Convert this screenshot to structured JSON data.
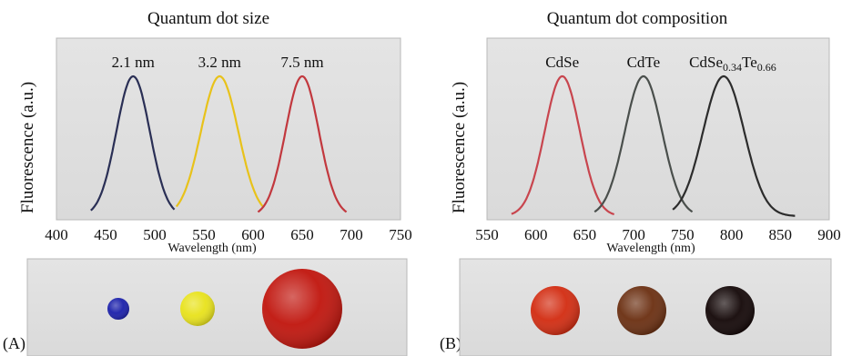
{
  "chart_data": [
    {
      "type": "line",
      "title": "Quantum dot size",
      "xlabel": "Wavelength (nm)",
      "ylabel": "Fluorescence (a.u.)",
      "xlim": [
        400,
        750
      ],
      "xticks": [
        "400",
        "450",
        "500",
        "550",
        "600",
        "650",
        "700",
        "750"
      ],
      "series": [
        {
          "name": "2.1 nm",
          "color": "#2a2f55",
          "peak": 478,
          "sigma": 17,
          "range": [
            435,
            520
          ]
        },
        {
          "name": "3.2 nm",
          "color": "#e8c21a",
          "peak": 566,
          "sigma": 19,
          "range": [
            522,
            610
          ]
        },
        {
          "name": "7.5 nm",
          "color": "#c2383e",
          "peak": 650,
          "sigma": 17,
          "range": [
            605,
            695
          ]
        }
      ],
      "dots": [
        {
          "color": "#1a1faa",
          "size": "small"
        },
        {
          "color": "#e8e21a",
          "size": "medium"
        },
        {
          "color": "#c0140c",
          "size": "large"
        }
      ],
      "panel_label": "(A)"
    },
    {
      "type": "line",
      "title": "Quantum dot composition",
      "xlabel": "Wavelength (nm)",
      "ylabel": "Fluorescence (a.u.)",
      "xlim": [
        550,
        900
      ],
      "xticks": [
        "550",
        "600",
        "650",
        "700",
        "750",
        "800",
        "850",
        "900"
      ],
      "series": [
        {
          "name": "CdSe",
          "color": "#c8454e",
          "peak": 627,
          "sigma": 18,
          "range": [
            575,
            680
          ]
        },
        {
          "name": "CdTe",
          "color": "#4a4f4c",
          "peak": 710,
          "sigma": 19,
          "range": [
            660,
            760
          ]
        },
        {
          "name": "CdSe0.34Te0.66",
          "color": "#2c2c2c",
          "peak": 792,
          "sigma": 21,
          "range": [
            740,
            865
          ]
        }
      ],
      "dots": [
        {
          "color": "#d22b10",
          "size": "medium"
        },
        {
          "color": "#6a2e10",
          "size": "medium"
        },
        {
          "color": "#120606",
          "size": "medium"
        }
      ],
      "panel_label": "(B)"
    }
  ]
}
